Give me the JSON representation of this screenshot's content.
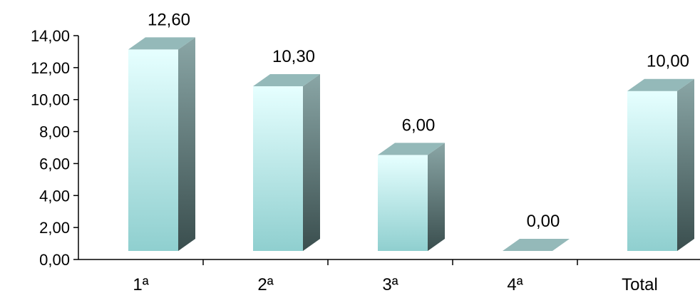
{
  "chart_data": {
    "type": "bar",
    "categories": [
      "1ª",
      "2ª",
      "3ª",
      "4ª",
      "Total"
    ],
    "values": [
      12.6,
      10.3,
      6.0,
      0.0,
      10.0
    ],
    "data_labels": [
      "12,60",
      "10,30",
      "6,00",
      "0,00",
      "10,00"
    ],
    "yticks": [
      "0,00",
      "2,00",
      "4,00",
      "6,00",
      "8,00",
      "10,00",
      "12,00",
      "14,00"
    ],
    "ylim": [
      0,
      14
    ],
    "title": "",
    "xlabel": "",
    "ylabel": "",
    "grid": false,
    "style": "3d-column",
    "colors": {
      "front_top": "#e6ffff",
      "front_bottom": "#8fcfcf",
      "side_top": "#8aa6a6",
      "side_bottom": "#3a4e4e",
      "top_face": "#94b9b9",
      "axis": "#000000"
    }
  }
}
